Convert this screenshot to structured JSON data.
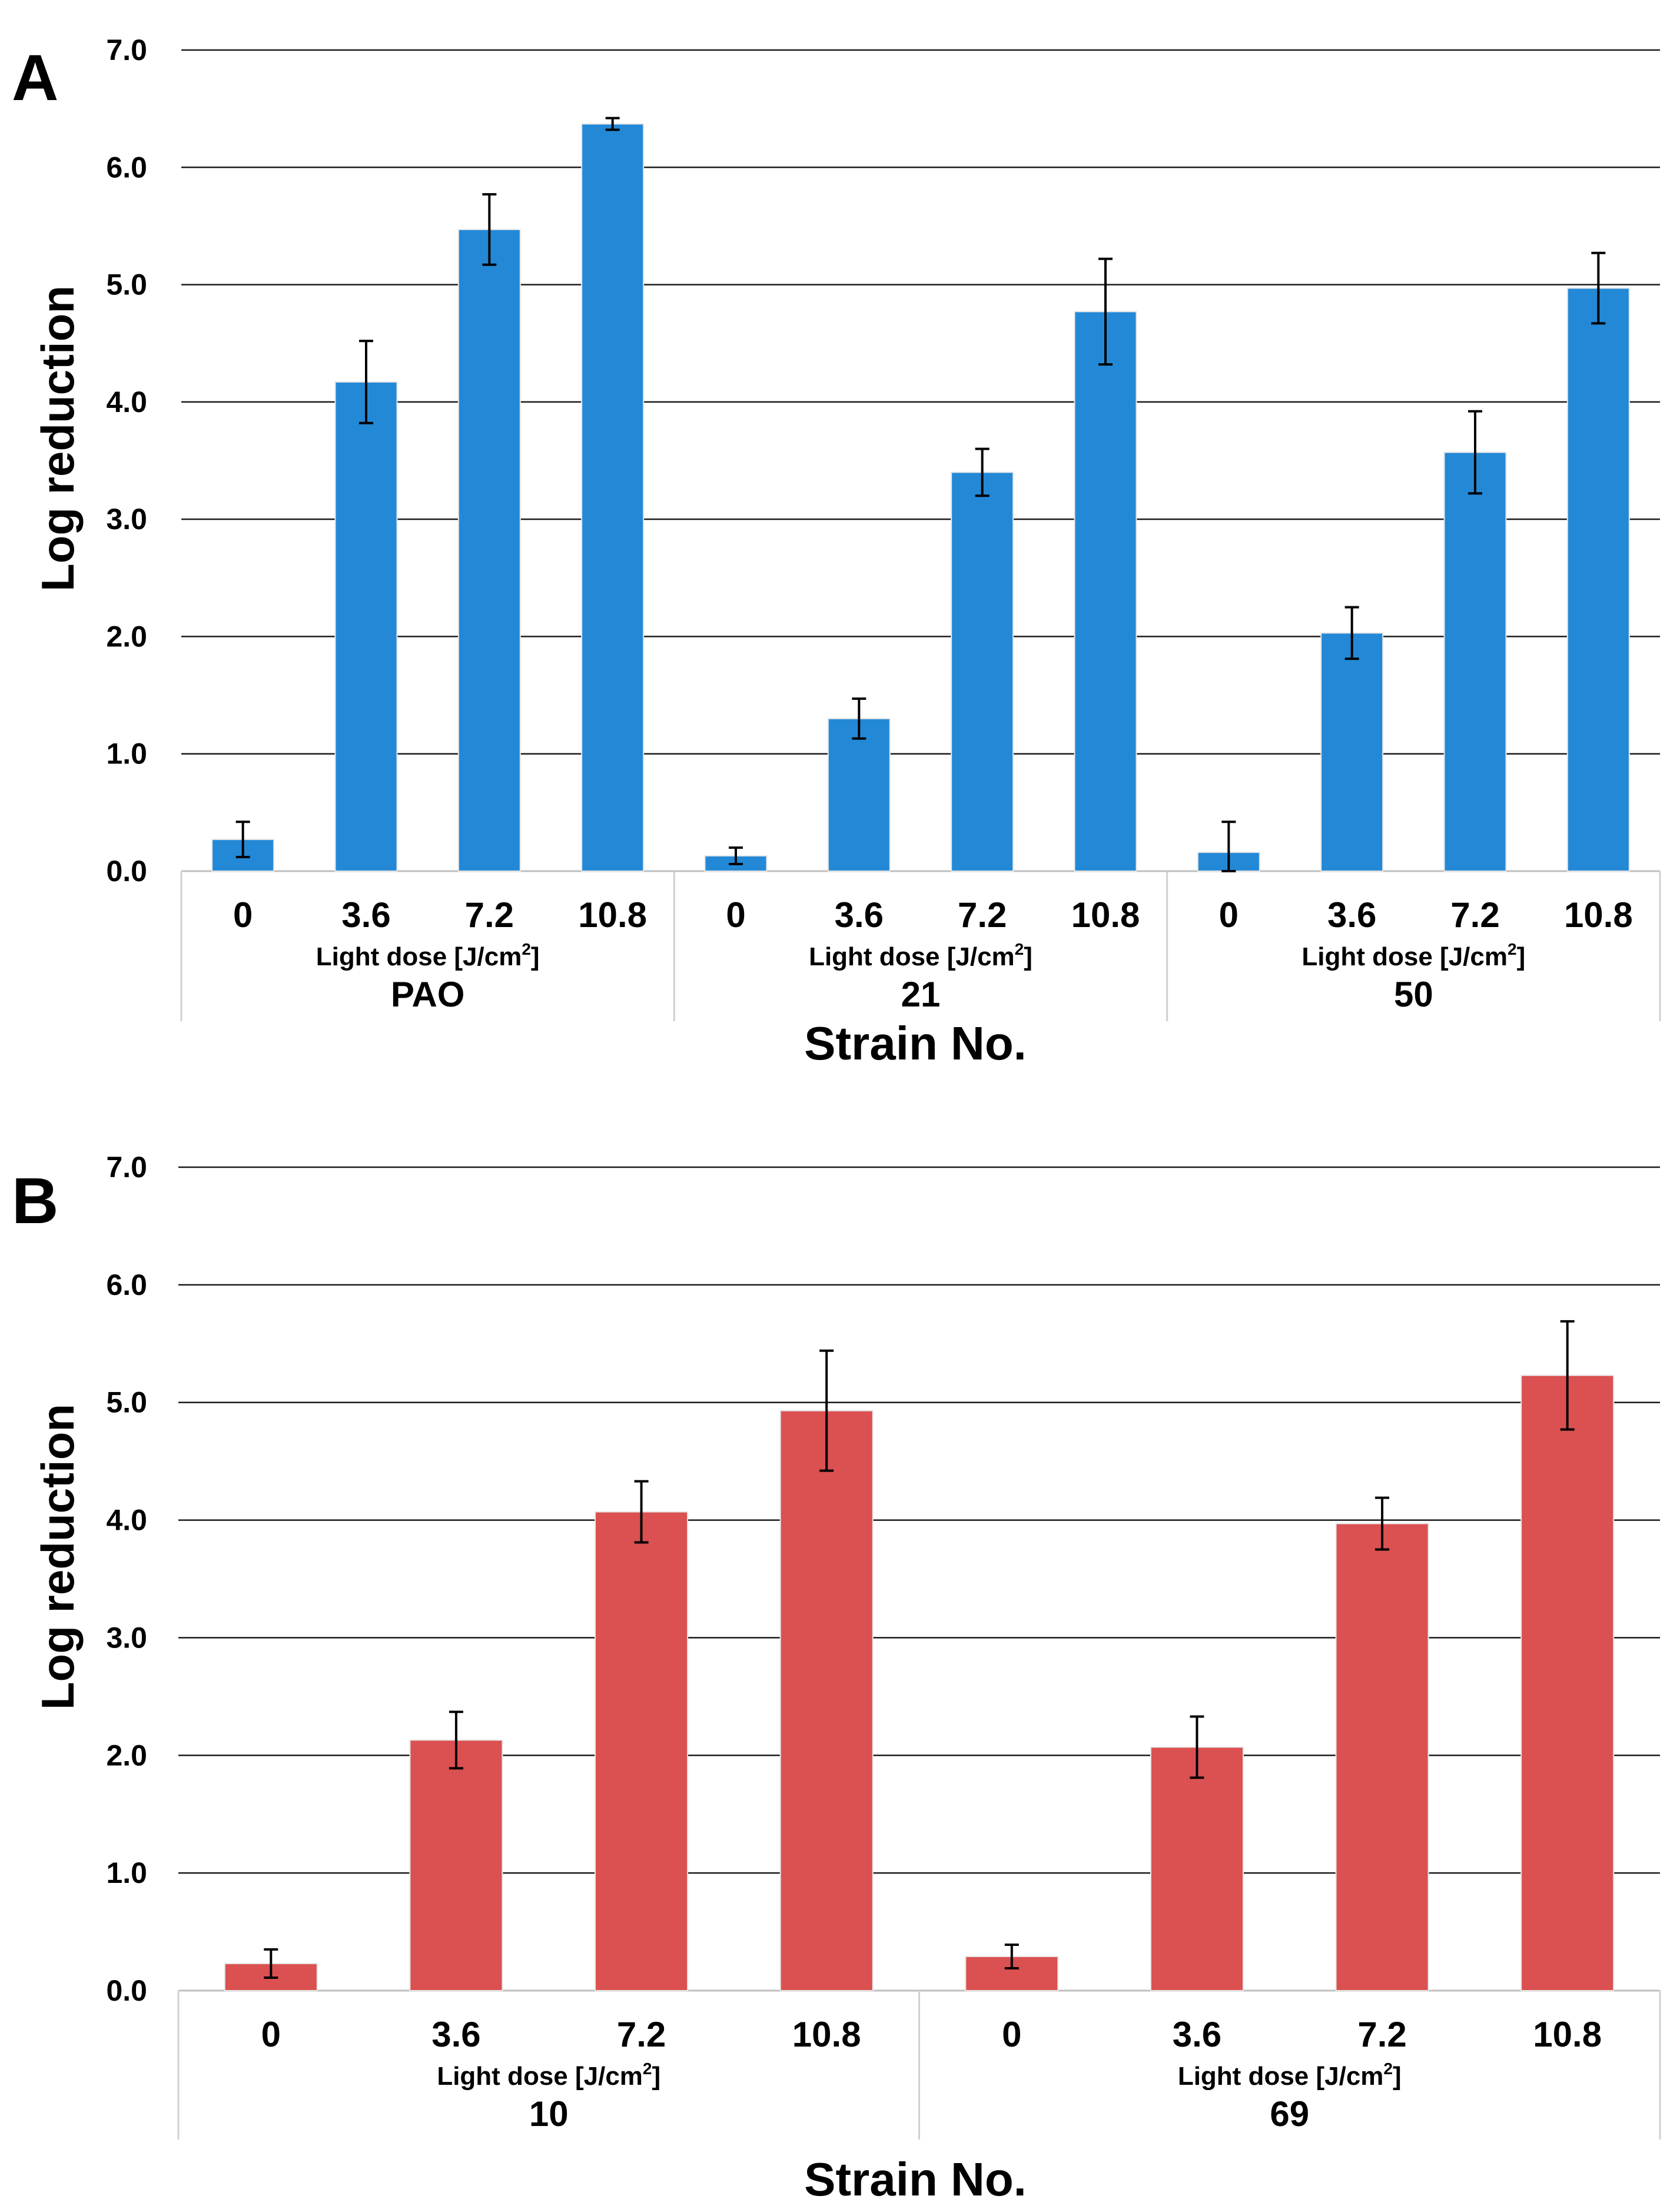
{
  "figure": {
    "ylabel": "Log reduction",
    "xlabel": "Strain No.",
    "sublabel_prefix": "Light dose [J/cm",
    "sublabel_sup": "2",
    "sublabel_suffix": "]"
  },
  "chart_data": [
    {
      "panel": "A",
      "type": "bar",
      "color": "#2389D7",
      "ylim": [
        0,
        7
      ],
      "yticks": [
        "0.0",
        "1.0",
        "2.0",
        "3.0",
        "4.0",
        "5.0",
        "6.0",
        "7.0"
      ],
      "ylabel": "Log reduction",
      "xlabel": "Strain No.",
      "groups": [
        {
          "name": "PAO",
          "categories": [
            "0",
            "3.6",
            "7.2",
            "10.8"
          ],
          "values": [
            0.27,
            4.17,
            5.47,
            6.37
          ],
          "errors": [
            0.15,
            0.35,
            0.3,
            0.05
          ]
        },
        {
          "name": "21",
          "categories": [
            "0",
            "3.6",
            "7.2",
            "10.8"
          ],
          "values": [
            0.13,
            1.3,
            3.4,
            4.77
          ],
          "errors": [
            0.07,
            0.17,
            0.2,
            0.45
          ]
        },
        {
          "name": "50",
          "categories": [
            "0",
            "3.6",
            "7.2",
            "10.8"
          ],
          "values": [
            0.16,
            2.03,
            3.57,
            4.97
          ],
          "errors": [
            0.26,
            0.22,
            0.35,
            0.3
          ]
        }
      ]
    },
    {
      "panel": "B",
      "type": "bar",
      "color": "#DB5050",
      "ylim": [
        0,
        7
      ],
      "yticks": [
        "0.0",
        "1.0",
        "2.0",
        "3.0",
        "4.0",
        "5.0",
        "6.0",
        "7.0"
      ],
      "ylabel": "Log reduction",
      "xlabel": "Strain No.",
      "groups": [
        {
          "name": "10",
          "categories": [
            "0",
            "3.6",
            "7.2",
            "10.8"
          ],
          "values": [
            0.23,
            2.13,
            4.07,
            4.93
          ],
          "errors": [
            0.12,
            0.24,
            0.26,
            0.51
          ]
        },
        {
          "name": "69",
          "categories": [
            "0",
            "3.6",
            "7.2",
            "10.8"
          ],
          "values": [
            0.29,
            2.07,
            3.97,
            5.23
          ],
          "errors": [
            0.1,
            0.26,
            0.22,
            0.46
          ]
        }
      ]
    }
  ]
}
